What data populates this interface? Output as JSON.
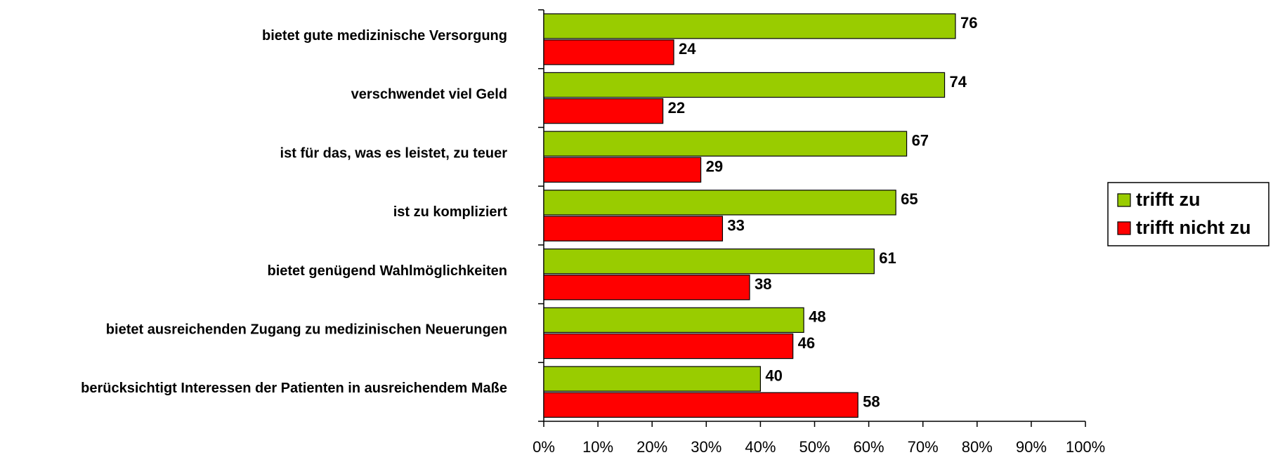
{
  "chart_data": {
    "type": "hbar",
    "categories": [
      "bietet gute medizinische Versorgung",
      "verschwendet viel Geld",
      "ist für das, was es leistet, zu teuer",
      "ist zu kompliziert",
      "bietet genügend Wahlmöglichkeiten",
      "bietet ausreichenden Zugang zu medizinischen Neuerungen",
      "berücksichtigt Interessen der Patienten in ausreichendem Maße"
    ],
    "series": [
      {
        "name": "trifft zu",
        "color": "#99cc00",
        "values": [
          76,
          74,
          67,
          65,
          61,
          48,
          40
        ]
      },
      {
        "name": "trifft nicht zu",
        "color": "#ff0000",
        "values": [
          24,
          22,
          29,
          33,
          38,
          46,
          58
        ]
      }
    ],
    "xlim": [
      0,
      100
    ],
    "xticks": [
      {
        "value": 0,
        "label": "0%"
      },
      {
        "value": 10,
        "label": "10%"
      },
      {
        "value": 20,
        "label": "20%"
      },
      {
        "value": 30,
        "label": "30%"
      },
      {
        "value": 40,
        "label": "40%"
      },
      {
        "value": 50,
        "label": "50%"
      },
      {
        "value": 60,
        "label": "60%"
      },
      {
        "value": 70,
        "label": "70%"
      },
      {
        "value": 80,
        "label": "80%"
      },
      {
        "value": 90,
        "label": "90%"
      },
      {
        "value": 100,
        "label": "100%"
      }
    ],
    "legend": "right",
    "grid": false
  }
}
